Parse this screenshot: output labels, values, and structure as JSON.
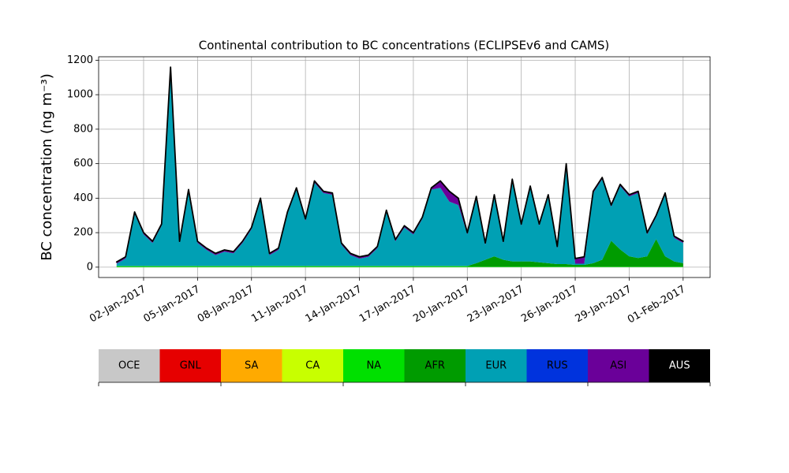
{
  "chart_data": {
    "type": "stacked_area",
    "title": "Continental contribution to BC concentrations (ECLIPSEv6 and CAMS)",
    "ylabel": "BC concentration (ng m⁻³)",
    "x": [
      "2016-12-31T12",
      "2017-01-01T00",
      "2017-01-01T12",
      "2017-01-02T00",
      "2017-01-02T12",
      "2017-01-03T00",
      "2017-01-03T12",
      "2017-01-04T00",
      "2017-01-04T12",
      "2017-01-05T00",
      "2017-01-05T12",
      "2017-01-06T00",
      "2017-01-06T12",
      "2017-01-07T00",
      "2017-01-07T12",
      "2017-01-08T00",
      "2017-01-08T12",
      "2017-01-09T00",
      "2017-01-09T12",
      "2017-01-10T00",
      "2017-01-10T12",
      "2017-01-11T00",
      "2017-01-11T12",
      "2017-01-12T00",
      "2017-01-12T12",
      "2017-01-13T00",
      "2017-01-13T12",
      "2017-01-14T00",
      "2017-01-14T12",
      "2017-01-15T00",
      "2017-01-15T12",
      "2017-01-16T00",
      "2017-01-16T12",
      "2017-01-17T00",
      "2017-01-17T12",
      "2017-01-18T00",
      "2017-01-18T12",
      "2017-01-19T00",
      "2017-01-19T12",
      "2017-01-20T00",
      "2017-01-20T12",
      "2017-01-21T00",
      "2017-01-21T12",
      "2017-01-22T00",
      "2017-01-22T12",
      "2017-01-23T00",
      "2017-01-23T12",
      "2017-01-24T00",
      "2017-01-24T12",
      "2017-01-25T00",
      "2017-01-25T12",
      "2017-01-26T00",
      "2017-01-26T12",
      "2017-01-27T00",
      "2017-01-27T12",
      "2017-01-28T00",
      "2017-01-28T12",
      "2017-01-29T00",
      "2017-01-29T12",
      "2017-01-30T00",
      "2017-01-30T12",
      "2017-01-31T00",
      "2017-01-31T12",
      "2017-02-01T00"
    ],
    "series": [
      {
        "name": "OCE",
        "color": "#c8c8c8",
        "values": [
          0,
          0,
          0,
          0,
          0,
          0,
          0,
          0,
          0,
          0,
          0,
          0,
          0,
          0,
          0,
          0,
          0,
          0,
          0,
          0,
          0,
          0,
          0,
          0,
          0,
          0,
          0,
          0,
          0,
          0,
          0,
          0,
          0,
          0,
          0,
          0,
          0,
          0,
          0,
          0,
          0,
          0,
          0,
          0,
          0,
          0,
          0,
          0,
          0,
          0,
          0,
          0,
          0,
          0,
          0,
          0,
          0,
          0,
          0,
          0,
          0,
          0,
          0,
          0
        ]
      },
      {
        "name": "GNL",
        "color": "#e60000",
        "values": [
          0,
          0,
          0,
          0,
          0,
          0,
          0,
          0,
          0,
          0,
          0,
          0,
          0,
          0,
          0,
          0,
          0,
          0,
          0,
          0,
          0,
          0,
          0,
          0,
          0,
          0,
          0,
          0,
          0,
          0,
          0,
          0,
          0,
          0,
          0,
          0,
          0,
          0,
          0,
          0,
          0,
          0,
          0,
          0,
          0,
          0,
          0,
          0,
          0,
          0,
          0,
          0,
          0,
          0,
          0,
          0,
          0,
          0,
          0,
          0,
          0,
          0,
          0,
          0
        ]
      },
      {
        "name": "SA",
        "color": "#ffaa00",
        "values": [
          0,
          0,
          0,
          0,
          0,
          0,
          0,
          0,
          0,
          0,
          0,
          0,
          0,
          0,
          0,
          0,
          0,
          0,
          0,
          0,
          0,
          0,
          0,
          0,
          0,
          0,
          0,
          0,
          0,
          0,
          0,
          0,
          0,
          0,
          0,
          0,
          0,
          0,
          0,
          0,
          0,
          0,
          0,
          0,
          0,
          0,
          0,
          0,
          0,
          0,
          0,
          0,
          0,
          0,
          0,
          0,
          0,
          0,
          0,
          0,
          0,
          0,
          0,
          0
        ]
      },
      {
        "name": "CA",
        "color": "#c8ff00",
        "values": [
          0,
          0,
          0,
          0,
          0,
          0,
          0,
          0,
          0,
          0,
          0,
          0,
          0,
          0,
          0,
          0,
          0,
          0,
          0,
          0,
          0,
          0,
          0,
          0,
          0,
          0,
          0,
          0,
          0,
          0,
          0,
          0,
          0,
          0,
          0,
          0,
          0,
          0,
          0,
          0,
          0,
          0,
          0,
          0,
          0,
          0,
          0,
          0,
          0,
          0,
          0,
          0,
          0,
          0,
          0,
          0,
          0,
          0,
          0,
          0,
          0,
          0,
          0,
          0
        ]
      },
      {
        "name": "NA",
        "color": "#00e000",
        "values": [
          5,
          5,
          5,
          5,
          5,
          5,
          5,
          5,
          5,
          5,
          5,
          5,
          5,
          5,
          5,
          5,
          5,
          5,
          5,
          5,
          5,
          5,
          5,
          5,
          5,
          5,
          5,
          5,
          5,
          5,
          5,
          5,
          5,
          5,
          5,
          5,
          5,
          5,
          5,
          5,
          3,
          3,
          3,
          3,
          3,
          3,
          3,
          3,
          3,
          3,
          3,
          3,
          3,
          3,
          3,
          3,
          3,
          3,
          3,
          3,
          3,
          3,
          3,
          3
        ]
      },
      {
        "name": "AFR",
        "color": "#009b00",
        "values": [
          2,
          2,
          2,
          2,
          2,
          2,
          2,
          2,
          2,
          2,
          2,
          2,
          2,
          2,
          2,
          2,
          2,
          2,
          2,
          2,
          2,
          2,
          2,
          2,
          2,
          2,
          2,
          2,
          2,
          2,
          2,
          2,
          2,
          2,
          2,
          2,
          2,
          2,
          2,
          2,
          20,
          40,
          60,
          40,
          30,
          30,
          30,
          25,
          20,
          15,
          15,
          10,
          10,
          20,
          40,
          150,
          100,
          60,
          50,
          60,
          160,
          60,
          30,
          20
        ]
      },
      {
        "name": "EUR",
        "color": "#00a0b4",
        "values": [
          13,
          43,
          303,
          183,
          133,
          233,
          1143,
          133,
          433,
          133,
          93,
          63,
          83,
          73,
          133,
          213,
          383,
          63,
          93,
          303,
          443,
          263,
          483,
          423,
          413,
          123,
          63,
          43,
          53,
          103,
          313,
          143,
          223,
          183,
          273,
          443,
          453,
          373,
          353,
          183,
          377,
          87,
          347,
          97,
          467,
          207,
          427,
          212,
          387,
          92,
          552,
          7,
          7,
          407,
          467,
          197,
          367,
          347,
          377,
          127,
          127,
          357,
          137,
          117
        ]
      },
      {
        "name": "RUS",
        "color": "#0033dd",
        "values": [
          0,
          0,
          0,
          0,
          0,
          0,
          0,
          0,
          0,
          0,
          0,
          0,
          0,
          0,
          0,
          0,
          0,
          0,
          0,
          0,
          0,
          0,
          0,
          0,
          0,
          0,
          0,
          0,
          0,
          0,
          0,
          0,
          0,
          0,
          0,
          0,
          0,
          0,
          0,
          0,
          0,
          0,
          0,
          0,
          0,
          0,
          0,
          0,
          0,
          0,
          0,
          0,
          0,
          0,
          0,
          0,
          0,
          0,
          0,
          0,
          0,
          0,
          0,
          0
        ]
      },
      {
        "name": "ASI",
        "color": "#6a0099",
        "values": [
          10,
          10,
          10,
          10,
          10,
          10,
          10,
          10,
          10,
          10,
          10,
          10,
          10,
          10,
          10,
          10,
          10,
          10,
          10,
          10,
          10,
          10,
          10,
          10,
          10,
          10,
          10,
          10,
          10,
          10,
          10,
          10,
          10,
          10,
          10,
          10,
          40,
          60,
          40,
          10,
          10,
          10,
          10,
          10,
          10,
          10,
          10,
          10,
          10,
          10,
          30,
          30,
          40,
          10,
          10,
          10,
          10,
          10,
          10,
          10,
          10,
          10,
          10,
          10
        ]
      },
      {
        "name": "AUS",
        "color": "#000000",
        "values": [
          0,
          0,
          0,
          0,
          0,
          0,
          0,
          0,
          0,
          0,
          0,
          0,
          0,
          0,
          0,
          0,
          0,
          0,
          0,
          0,
          0,
          0,
          0,
          0,
          0,
          0,
          0,
          0,
          0,
          0,
          0,
          0,
          0,
          0,
          0,
          0,
          0,
          0,
          0,
          0,
          0,
          0,
          0,
          0,
          0,
          0,
          0,
          0,
          0,
          0,
          0,
          0,
          0,
          0,
          0,
          0,
          0,
          0,
          0,
          0,
          0,
          0,
          0,
          0
        ]
      }
    ],
    "xlim": [
      "2016-12-30T12",
      "2017-02-02T12"
    ],
    "xticks": [
      {
        "value": "2017-01-02T00",
        "label": "02-Jan-2017"
      },
      {
        "value": "2017-01-05T00",
        "label": "05-Jan-2017"
      },
      {
        "value": "2017-01-08T00",
        "label": "08-Jan-2017"
      },
      {
        "value": "2017-01-11T00",
        "label": "11-Jan-2017"
      },
      {
        "value": "2017-01-14T00",
        "label": "14-Jan-2017"
      },
      {
        "value": "2017-01-17T00",
        "label": "17-Jan-2017"
      },
      {
        "value": "2017-01-20T00",
        "label": "20-Jan-2017"
      },
      {
        "value": "2017-01-23T00",
        "label": "23-Jan-2017"
      },
      {
        "value": "2017-01-26T00",
        "label": "26-Jan-2017"
      },
      {
        "value": "2017-01-29T00",
        "label": "29-Jan-2017"
      },
      {
        "value": "2017-02-01T00",
        "label": "01-Feb-2017"
      }
    ],
    "ylim": [
      -60,
      1220
    ],
    "yticks": [
      0,
      200,
      400,
      600,
      800,
      1000,
      1200
    ],
    "grid": true
  }
}
